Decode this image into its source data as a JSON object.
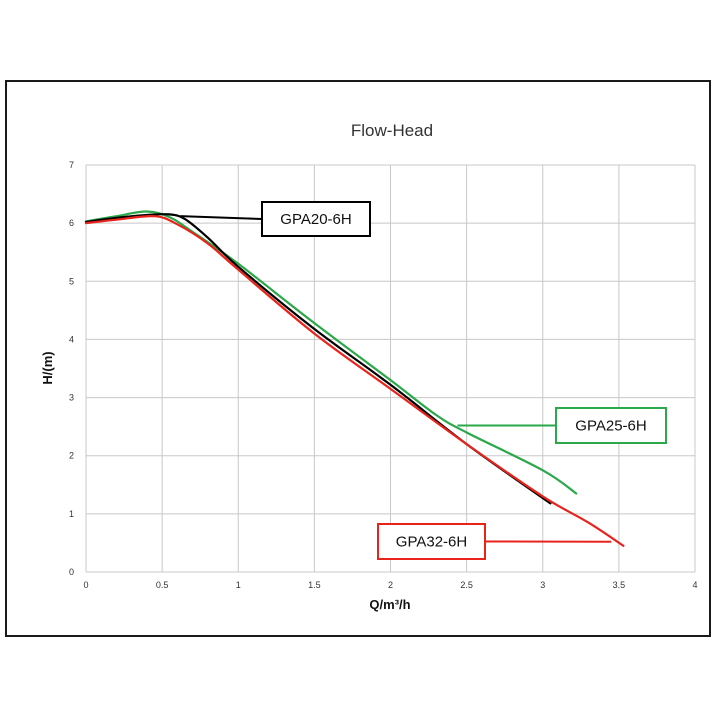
{
  "chart_data": {
    "type": "line",
    "title": "Flow-Head",
    "xlabel": "Q/m³/h",
    "ylabel": "H/(m)",
    "xlim": [
      0,
      4
    ],
    "ylim": [
      0,
      7
    ],
    "x_ticks": [
      "0",
      "0.5",
      "1",
      "1.5",
      "2",
      "2.5",
      "3",
      "3.5",
      "4"
    ],
    "y_ticks": [
      "0",
      "1",
      "2",
      "3",
      "4",
      "5",
      "6",
      "7"
    ],
    "grid": true,
    "legend": "callouts",
    "series": [
      {
        "name": "GPA20-6H",
        "color": "#000000",
        "x": [
          0,
          0.2,
          0.4,
          0.55,
          0.65,
          0.8,
          1.0,
          1.5,
          2.0,
          2.5,
          3.05
        ],
        "y": [
          6.02,
          6.09,
          6.14,
          6.15,
          6.07,
          5.75,
          5.25,
          4.18,
          3.22,
          2.2,
          1.18
        ]
      },
      {
        "name": "GPA25-6H",
        "color": "#2aa84a",
        "x": [
          0,
          0.2,
          0.4,
          0.55,
          0.7,
          1.0,
          1.5,
          2.0,
          2.3,
          2.5,
          3.0,
          3.22
        ],
        "y": [
          6.03,
          6.12,
          6.2,
          6.1,
          5.85,
          5.3,
          4.28,
          3.3,
          2.7,
          2.4,
          1.75,
          1.35
        ]
      },
      {
        "name": "GPA32-6H",
        "color": "#e8231c",
        "x": [
          0,
          0.2,
          0.45,
          0.6,
          0.8,
          1.0,
          1.5,
          2.0,
          2.5,
          3.0,
          3.3,
          3.53
        ],
        "y": [
          6.0,
          6.06,
          6.12,
          5.98,
          5.65,
          5.2,
          4.1,
          3.15,
          2.2,
          1.3,
          0.85,
          0.45
        ]
      }
    ]
  },
  "callouts": [
    {
      "label": "GPA20-6H",
      "border": "#000000",
      "line": "#000000",
      "anchor": [
        0.62,
        6.12
      ]
    },
    {
      "label": "GPA25-6H",
      "border": "#2aa84a",
      "line": "#2aa84a",
      "anchor": [
        2.44,
        2.52
      ]
    },
    {
      "label": "GPA32-6H",
      "border": "#e8231c",
      "line": "#e8231c",
      "anchor": [
        3.45,
        0.52
      ]
    }
  ]
}
